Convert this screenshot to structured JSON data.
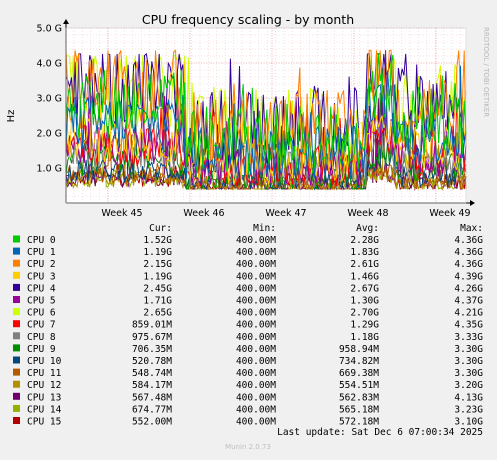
{
  "chart_data": {
    "type": "line",
    "title": "CPU frequency scaling - by month",
    "ylabel": "Hz",
    "ylim": [
      0,
      5000000000
    ],
    "yticks": [
      "1.0 G",
      "2.0 G",
      "3.0 G",
      "4.0 G",
      "5.0 G"
    ],
    "ytick_values": [
      1000000000,
      2000000000,
      3000000000,
      4000000000,
      5000000000
    ],
    "xticks": [
      "Week 45",
      "Week 46",
      "Week 47",
      "Week 48",
      "Week 49"
    ],
    "grid": true,
    "legend_headers": {
      "cur": "Cur:",
      "min": "Min:",
      "avg": "Avg:",
      "max": "Max:"
    },
    "series": [
      {
        "name": "CPU 0",
        "color": "#00cc00",
        "cur": "1.52G",
        "min": "400.00M",
        "avg": "2.28G",
        "max": "4.36G"
      },
      {
        "name": "CPU 1",
        "color": "#0066b3",
        "cur": "1.19G",
        "min": "400.00M",
        "avg": "1.83G",
        "max": "4.36G"
      },
      {
        "name": "CPU 2",
        "color": "#ff8000",
        "cur": "2.15G",
        "min": "400.00M",
        "avg": "2.61G",
        "max": "4.36G"
      },
      {
        "name": "CPU 3",
        "color": "#ffcc00",
        "cur": "1.19G",
        "min": "400.00M",
        "avg": "1.46G",
        "max": "4.39G"
      },
      {
        "name": "CPU 4",
        "color": "#330099",
        "cur": "2.45G",
        "min": "400.00M",
        "avg": "2.67G",
        "max": "4.26G"
      },
      {
        "name": "CPU 5",
        "color": "#990099",
        "cur": "1.71G",
        "min": "400.00M",
        "avg": "1.30G",
        "max": "4.37G"
      },
      {
        "name": "CPU 6",
        "color": "#ccff00",
        "cur": "2.65G",
        "min": "400.00M",
        "avg": "2.70G",
        "max": "4.21G"
      },
      {
        "name": "CPU 7",
        "color": "#ff0000",
        "cur": "859.01M",
        "min": "400.00M",
        "avg": "1.29G",
        "max": "4.35G"
      },
      {
        "name": "CPU 8",
        "color": "#808080",
        "cur": "975.67M",
        "min": "400.00M",
        "avg": "1.18G",
        "max": "3.33G"
      },
      {
        "name": "CPU 9",
        "color": "#008f00",
        "cur": "706.35M",
        "min": "400.00M",
        "avg": "958.94M",
        "max": "3.30G"
      },
      {
        "name": "CPU 10",
        "color": "#00487d",
        "cur": "520.78M",
        "min": "400.00M",
        "avg": "734.82M",
        "max": "3.30G"
      },
      {
        "name": "CPU 11",
        "color": "#b35a00",
        "cur": "548.74M",
        "min": "400.00M",
        "avg": "669.38M",
        "max": "3.30G"
      },
      {
        "name": "CPU 12",
        "color": "#b38f00",
        "cur": "584.17M",
        "min": "400.00M",
        "avg": "554.51M",
        "max": "3.20G"
      },
      {
        "name": "CPU 13",
        "color": "#6b006b",
        "cur": "567.48M",
        "min": "400.00M",
        "avg": "562.83M",
        "max": "4.13G"
      },
      {
        "name": "CPU 14",
        "color": "#8fb300",
        "cur": "674.77M",
        "min": "400.00M",
        "avg": "565.18M",
        "max": "3.23G"
      },
      {
        "name": "CPU 15",
        "color": "#b30000",
        "cur": "552.00M",
        "min": "400.00M",
        "avg": "572.18M",
        "max": "3.10G"
      }
    ]
  },
  "footer": {
    "last_update": "Last update: Sat Dec  6 07:00:34 2025",
    "munin_version": "Munin 2.0.73"
  },
  "watermark": "RRDTOOL / TOBI OETIKER"
}
